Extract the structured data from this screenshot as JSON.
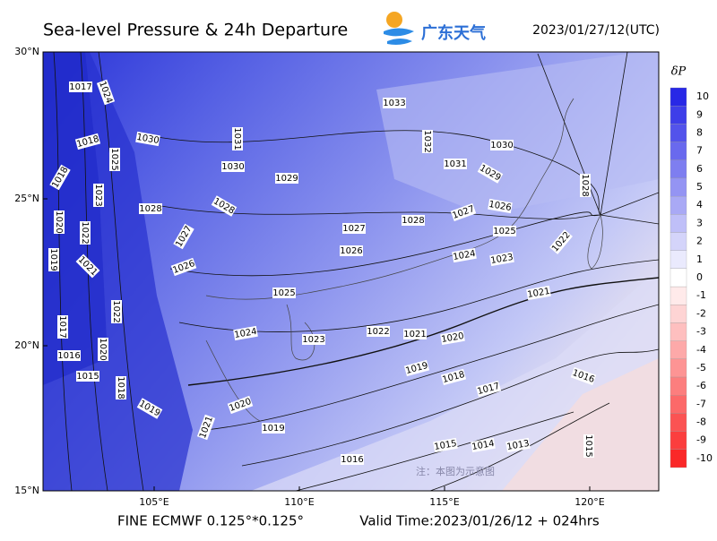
{
  "header": {
    "title": "Sea-level Pressure & 24h Departure",
    "logo_text": "广东天气",
    "datetime": "2023/01/27/12(UTC)"
  },
  "map": {
    "lat_labels": [
      "30°N",
      "25°N",
      "20°N",
      "15°N"
    ],
    "lon_labels": [
      "105°E",
      "110°E",
      "115°E",
      "120°E"
    ],
    "contour_labels": [
      1017,
      1024,
      1030,
      1018,
      1025,
      1018,
      1023,
      1028,
      1020,
      1022,
      1019,
      1021,
      1027,
      1026,
      1028,
      1031,
      1030,
      1029,
      1033,
      1032,
      1031,
      1030,
      1029,
      1028,
      1026,
      1027,
      1028,
      1027,
      1026,
      1025,
      1024,
      1023,
      1022,
      1025,
      1022,
      1024,
      1023,
      1022,
      1021,
      1021,
      1020,
      1017,
      1016,
      1020,
      1015,
      1018,
      1019,
      1020,
      1021,
      1019,
      1018,
      1017,
      1016,
      1019,
      1015,
      1014,
      1013,
      1016,
      1015
    ],
    "watermark": "注：本图为示意图"
  },
  "colorbar": {
    "title": "δP",
    "levels": [
      10,
      9,
      8,
      7,
      6,
      5,
      4,
      3,
      2,
      1,
      0,
      -1,
      -2,
      -3,
      -4,
      -5,
      -6,
      -7,
      -8,
      -9,
      -10
    ]
  },
  "footer": {
    "model": "FINE ECMWF 0.125°*0.125°",
    "valid_time": "Valid Time:2023/01/26/12 + 024hrs"
  }
}
